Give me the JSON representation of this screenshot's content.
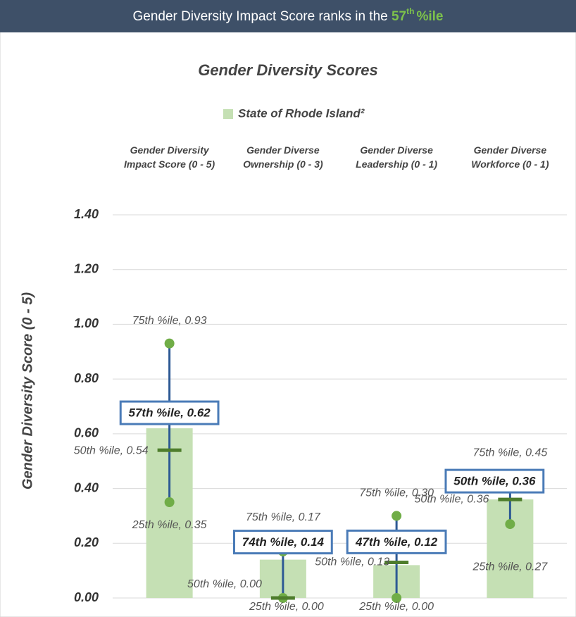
{
  "header": {
    "text": "Gender Diversity Impact Score ranks in the ",
    "rank": "57",
    "suffix": "th",
    "unit": "%ile"
  },
  "chart_data": {
    "type": "bar",
    "title": "Gender Diversity Scores",
    "ylabel": "Gender Diversity Score (0 - 5)",
    "categories": [
      [
        "Gender Diversity",
        "Impact Score (0 - 5)"
      ],
      [
        "Gender Diverse",
        "Ownership (0 - 3)"
      ],
      [
        "Gender Diverse",
        "Leadership (0 - 1)"
      ],
      [
        "Gender Diverse",
        "Workforce (0 - 1)"
      ]
    ],
    "ylim": [
      0,
      1.4
    ],
    "yticks": [
      {
        "value": 0,
        "label": "0.00"
      },
      {
        "value": 0.2,
        "label": "0.20"
      },
      {
        "value": 0.4,
        "label": "0.40"
      },
      {
        "value": 0.6,
        "label": "0.60"
      },
      {
        "value": 0.8,
        "label": "0.80"
      },
      {
        "value": 1,
        "label": "1.00"
      },
      {
        "value": 1.2,
        "label": "1.20"
      },
      {
        "value": 1.4,
        "label": "1.40"
      }
    ],
    "grid": true,
    "series": [
      {
        "name": "State of Rhode Island²",
        "color": "#c5e0b4",
        "values": [
          0.62,
          0.14,
          0.12,
          0.36
        ],
        "value_labels": [
          "57th %ile, 0.62",
          "74th %ile, 0.14",
          "47th %ile, 0.12",
          "50th %ile, 0.36"
        ]
      }
    ],
    "percentiles": {
      "p75": {
        "values": [
          0.93,
          0.17,
          0.3,
          0.45
        ],
        "value_labels": [
          "75th %ile, 0.93",
          "75th %ile, 0.17",
          "75th %ile, 0.30",
          "75th %ile, 0.45"
        ]
      },
      "p50": {
        "values": [
          0.54,
          0.0,
          0.13,
          0.36
        ],
        "value_labels": [
          "50th %ile, 0.54",
          "50th %ile, 0.00",
          "50th %ile, 0.13",
          "50th %ile, 0.36"
        ]
      },
      "p25": {
        "values": [
          0.35,
          0.0,
          0.0,
          0.27
        ],
        "value_labels": [
          "25th %ile, 0.35",
          "25th %ile, 0.00",
          "25th %ile, 0.00",
          "25th %ile, 0.27"
        ]
      }
    }
  }
}
